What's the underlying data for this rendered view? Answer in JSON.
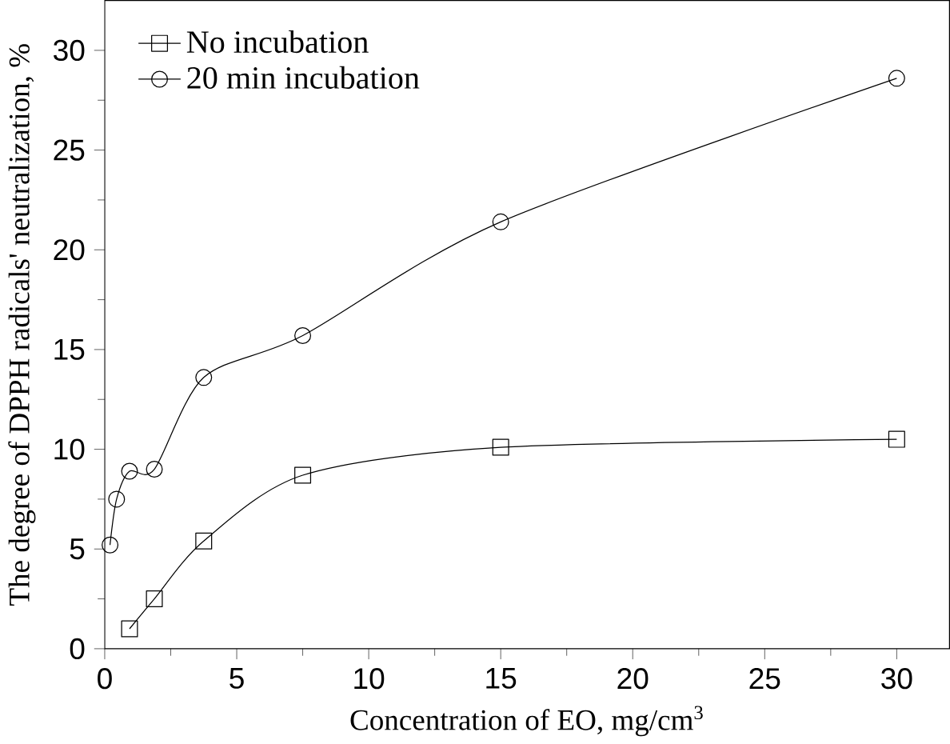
{
  "chart_data": {
    "type": "line",
    "xlabel": "Concentration of EO, mg/cm$^{3}$",
    "ylabel": "The degree of DPPH radicals' neutralization, %",
    "xlim": [
      0,
      32
    ],
    "ylim": [
      0,
      32.5
    ],
    "xticks": [
      0,
      5,
      10,
      15,
      20,
      25,
      30
    ],
    "yticks": [
      0,
      5,
      10,
      15,
      20,
      25,
      30
    ],
    "grid": false,
    "legend": "top left",
    "series": [
      {
        "name": "No incubation",
        "color": "#000000",
        "marker": "square",
        "x": [
          0.94,
          1.88,
          3.75,
          7.5,
          15,
          30
        ],
        "values": [
          1.0,
          2.5,
          5.4,
          8.7,
          10.1,
          10.5
        ]
      },
      {
        "name": "20 min incubation",
        "color": "#000000",
        "marker": "circle",
        "x": [
          0.2,
          0.45,
          0.94,
          1.88,
          3.75,
          7.5,
          15,
          30
        ],
        "values": [
          5.2,
          7.5,
          8.9,
          9.0,
          13.6,
          15.7,
          21.4,
          28.6
        ]
      }
    ]
  }
}
